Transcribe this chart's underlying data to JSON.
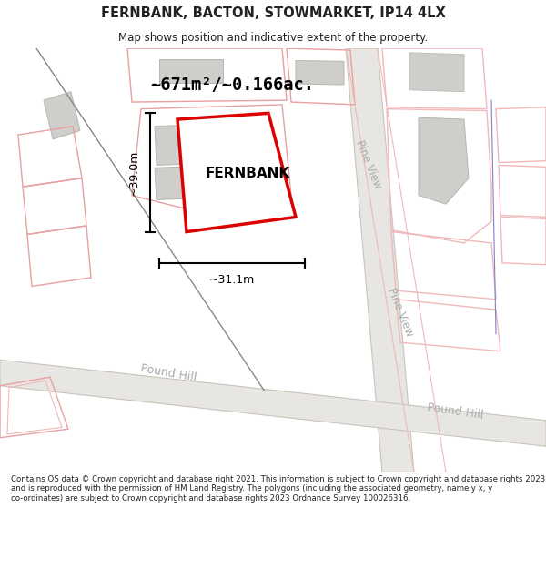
{
  "title": "FERNBANK, BACTON, STOWMARKET, IP14 4LX",
  "subtitle": "Map shows position and indicative extent of the property.",
  "footer": "Contains OS data © Crown copyright and database right 2021. This information is subject to Crown copyright and database rights 2023 and is reproduced with the permission of HM Land Registry. The polygons (including the associated geometry, namely x, y co-ordinates) are subject to Crown copyright and database rights 2023 Ordnance Survey 100026316.",
  "title_color": "#222222",
  "footer_color": "#222222",
  "red_color": "#dd0000",
  "pink_outline": "#e8a0a0",
  "pink_outline2": "#f0b8b8",
  "blue_line": "#8080cc",
  "gray_fill": "#d0cecb",
  "map_bg": "#ffffff",
  "area_text": "~671m²/~0.166ac.",
  "width_text": "~31.1m",
  "height_text": "~39.0m",
  "label_text": "FERNBANK",
  "road_label1": "Pine View",
  "road_label2": "Pound Hill",
  "figsize": [
    6.0,
    6.25
  ],
  "dpi": 100
}
